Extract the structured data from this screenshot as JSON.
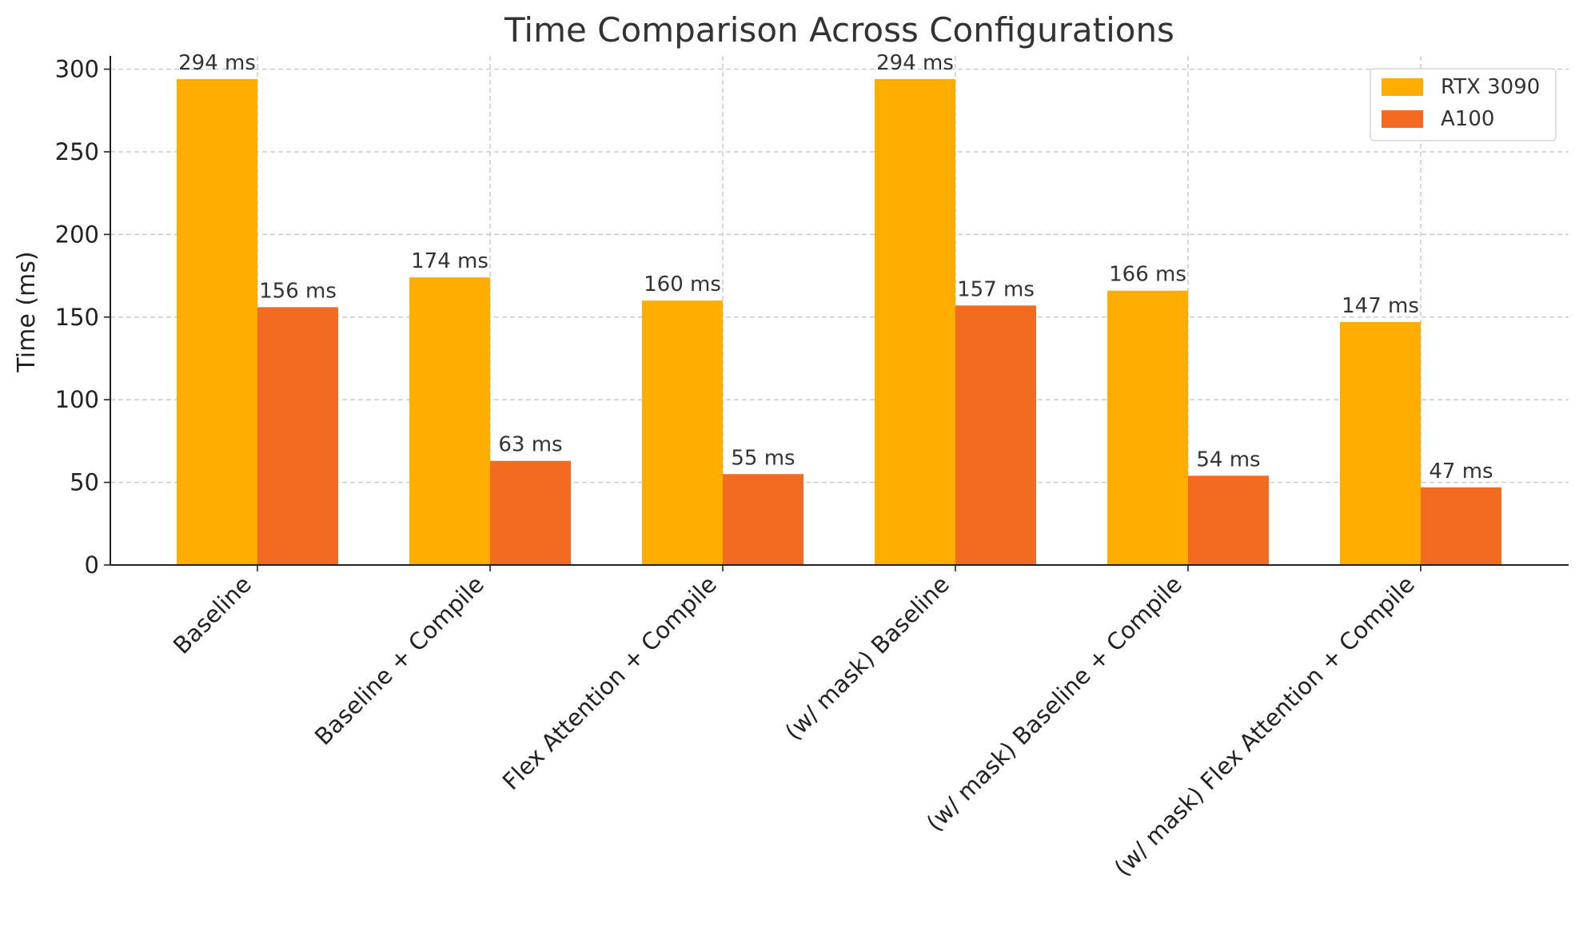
{
  "chart_data": {
    "type": "bar",
    "title": "Time Comparison Across Configurations",
    "xlabel": "",
    "ylabel": "Time (ms)",
    "ylim": [
      0,
      308
    ],
    "yticks": [
      0,
      50,
      100,
      150,
      200,
      250,
      300
    ],
    "grid": true,
    "legend_position": "top-right",
    "categories": [
      "Baseline",
      "Baseline + Compile",
      "Flex Attention + Compile",
      "(w/ mask) Baseline",
      "(w/ mask) Baseline + Compile",
      "(w/ mask) Flex Attention + Compile"
    ],
    "series": [
      {
        "name": "RTX 3090",
        "color": "#FFAE00",
        "values": [
          294,
          174,
          160,
          294,
          166,
          147
        ],
        "labels": [
          "294 ms",
          "174 ms",
          "160 ms",
          "294 ms",
          "166 ms",
          "147 ms"
        ]
      },
      {
        "name": "A100",
        "color": "#F26B21",
        "values": [
          156,
          63,
          55,
          157,
          54,
          47
        ],
        "labels": [
          "156 ms",
          "63 ms",
          "55 ms",
          "157 ms",
          "54 ms",
          "47 ms"
        ]
      }
    ]
  }
}
